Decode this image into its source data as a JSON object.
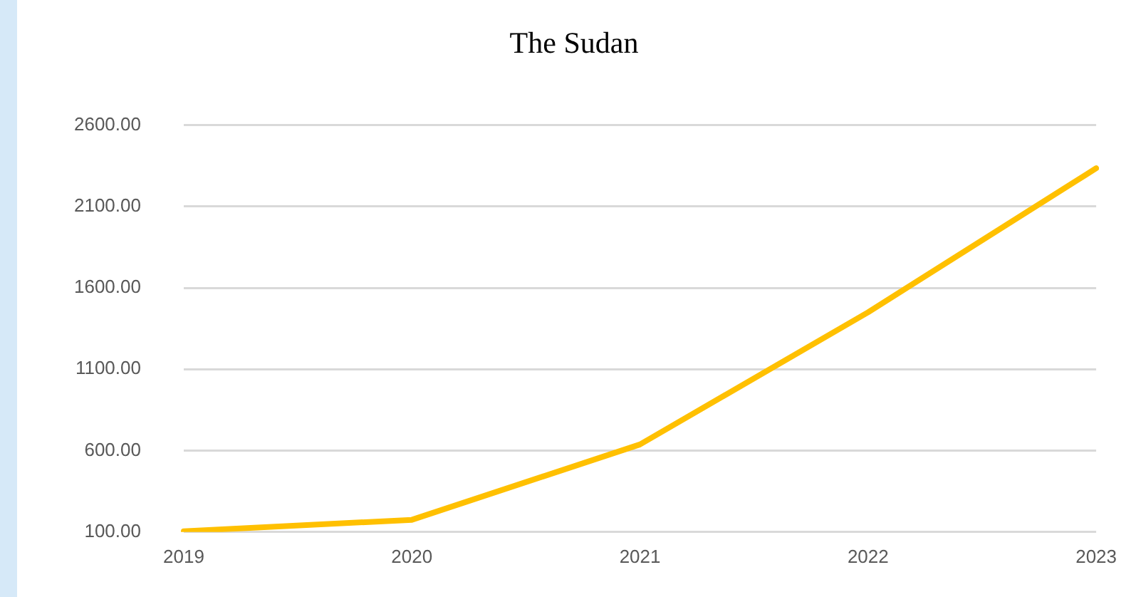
{
  "chart_data": {
    "type": "line",
    "title": "The Sudan",
    "categories": [
      "2019",
      "2020",
      "2021",
      "2022",
      "2023"
    ],
    "series": [
      {
        "color": "#ffc000",
        "values": [
          105,
          175,
          638,
          1450,
          2335
        ]
      }
    ],
    "ylim": [
      100,
      2600
    ],
    "yticks": [
      {
        "value": 100,
        "label": "100.00"
      },
      {
        "value": 600,
        "label": "600.00"
      },
      {
        "value": 1100,
        "label": "1100.00"
      },
      {
        "value": 1600,
        "label": "1600.00"
      },
      {
        "value": 2100,
        "label": "2100.00"
      },
      {
        "value": 2600,
        "label": "2600.00"
      }
    ],
    "grid": "y",
    "legend": false,
    "marker": "none",
    "line_style": "solid"
  }
}
